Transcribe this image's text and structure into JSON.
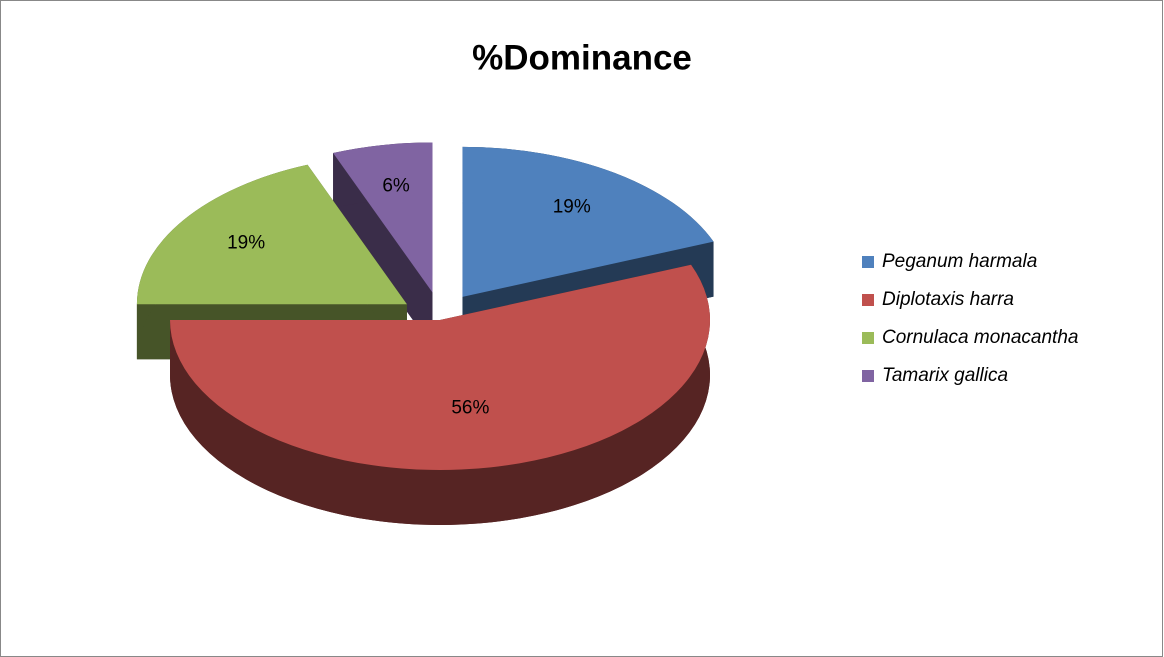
{
  "chart_data": {
    "type": "pie",
    "title": "%Dominance",
    "categories": [
      "Peganum harmala",
      "Diplotaxis harra",
      "Cornulaca monacantha",
      "Tamarix gallica"
    ],
    "values": [
      19,
      56,
      19,
      6
    ],
    "value_labels": [
      "19%",
      "56%",
      "19%",
      "6%"
    ],
    "colors": [
      "#4f81bd",
      "#c0504d",
      "#9bbb59",
      "#8064a2"
    ],
    "exploded": [
      true,
      false,
      true,
      true
    ],
    "legend": "right",
    "style": "3d"
  }
}
